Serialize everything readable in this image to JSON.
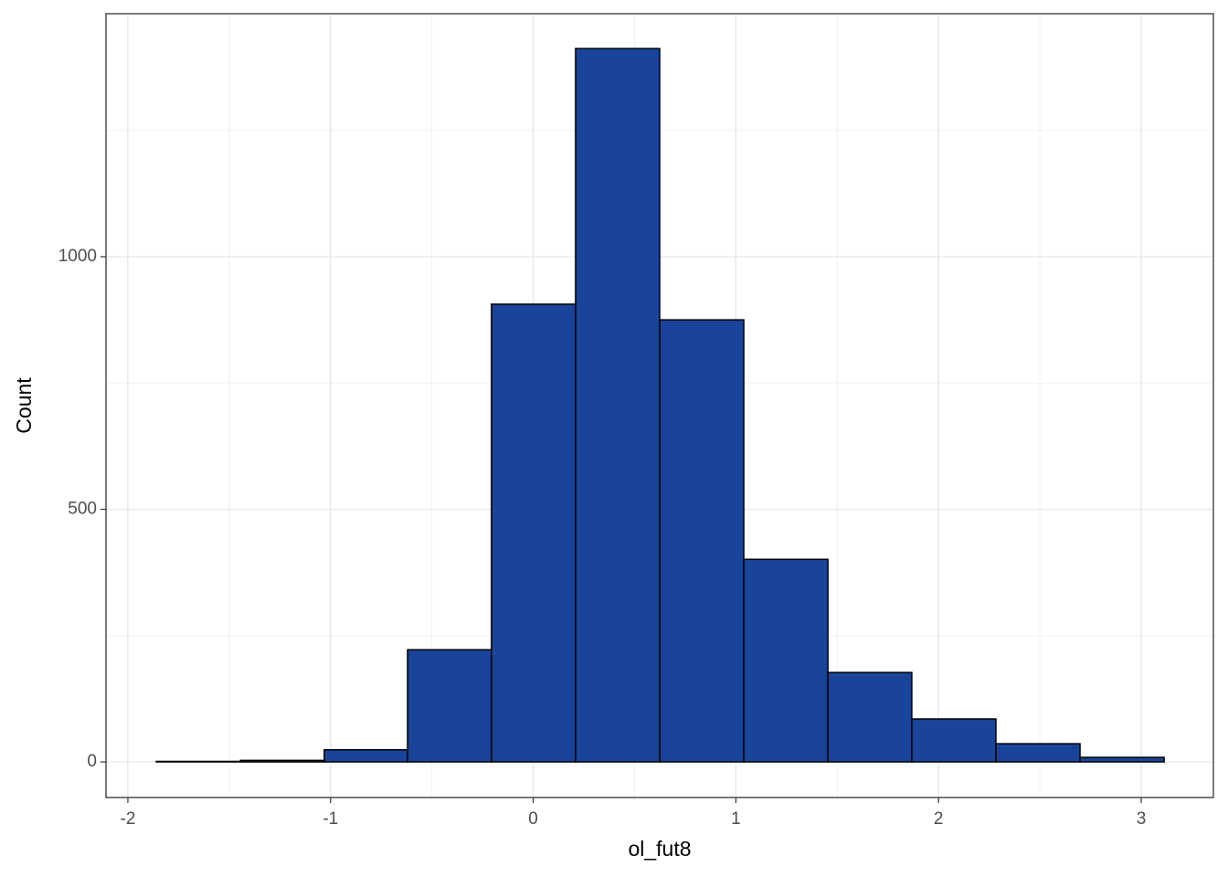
{
  "chart_data": {
    "type": "histogram",
    "x_label": "ol_fut8",
    "y_label": "Count",
    "bins": [
      -1.86,
      -1.445,
      -1.031,
      -0.62,
      -0.206,
      0.209,
      0.624,
      1.039,
      1.454,
      1.868,
      2.283,
      2.698,
      3.113
    ],
    "values": [
      1,
      3,
      24,
      222,
      906,
      1412,
      875,
      401,
      177,
      85,
      36,
      9
    ],
    "color": "#1a4499",
    "edge_color": "#000000",
    "xlim": [
      -2.108,
      3.356
    ],
    "ylim": [
      -70.5,
      1481
    ],
    "xticks": [
      -2,
      -1,
      0,
      1,
      2,
      3
    ],
    "yticks": [
      0,
      500,
      1000
    ],
    "minor_xticks": [
      -1.5,
      -0.5,
      0.5,
      1.5,
      2.5
    ],
    "minor_yticks": [
      250,
      750,
      1250
    ],
    "grid": true
  }
}
